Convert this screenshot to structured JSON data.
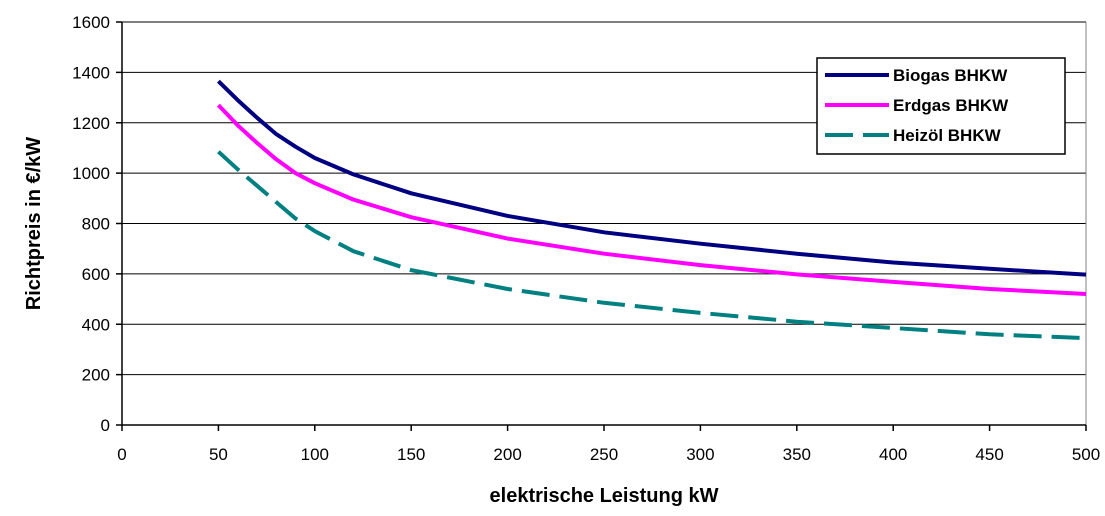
{
  "chart_data": {
    "type": "line",
    "title": "",
    "xlabel": "elektrische Leistung kW",
    "ylabel": "Richtpreis in €/kW",
    "xlim": [
      0,
      500
    ],
    "ylim": [
      0,
      1600
    ],
    "xticks": [
      0,
      50,
      100,
      150,
      200,
      250,
      300,
      350,
      400,
      450,
      500
    ],
    "yticks": [
      0,
      200,
      400,
      600,
      800,
      1000,
      1200,
      1400,
      1600
    ],
    "grid": true,
    "legend_position": "top-right",
    "x": [
      50,
      60,
      70,
      80,
      90,
      100,
      120,
      150,
      200,
      250,
      300,
      350,
      400,
      450,
      500
    ],
    "series": [
      {
        "name": "Biogas BHKW",
        "color": "#000080",
        "dash": "solid",
        "values": [
          1365,
          1290,
          1220,
          1155,
          1105,
          1060,
          995,
          920,
          830,
          765,
          720,
          680,
          645,
          620,
          597
        ]
      },
      {
        "name": "Erdgas BHKW",
        "color": "#FF00FF",
        "dash": "solid",
        "values": [
          1270,
          1190,
          1120,
          1055,
          1000,
          960,
          895,
          825,
          740,
          680,
          635,
          598,
          568,
          540,
          520
        ]
      },
      {
        "name": "Heizöl BHKW",
        "color": "#008080",
        "dash": "dashed",
        "values": [
          1085,
          1015,
          950,
          885,
          820,
          770,
          690,
          615,
          540,
          485,
          445,
          410,
          385,
          360,
          345
        ]
      }
    ]
  }
}
